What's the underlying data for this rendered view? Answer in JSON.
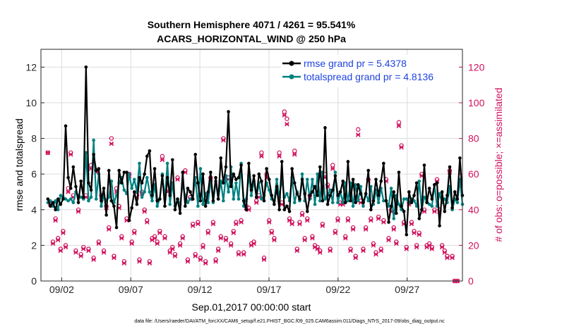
{
  "chart_data": {
    "type": "line",
    "title_line1": "Southern Hemisphere 4071 / 4261 = 95.541%",
    "title_line2": "ACARS_HORIZONTAL_WIND @ 250 hPa",
    "xlabel": "Sep.01,2017 00:00:00 start",
    "ylabel_left": "rmse and totalspread",
    "ylabel_right": "# of obs: o=possible; ×=assimilated",
    "footer": "data file: /Users/raeder/DAI/ATM_forcXX/CAM6_setup/f.e21.FHIST_BGC.f09_025.CAM6assim.011/Diags_NTrS_2017-09/obs_diag_output.nc",
    "xlim": [
      0.5,
      31
    ],
    "ylim_left": [
      0,
      13
    ],
    "ylim_right": [
      0,
      130
    ],
    "xticks": [
      2,
      7,
      12,
      17,
      22,
      27
    ],
    "xtick_labels": [
      "09/02",
      "09/07",
      "09/12",
      "09/17",
      "09/22",
      "09/27"
    ],
    "yticks_left": [
      0,
      2,
      4,
      6,
      8,
      10,
      12
    ],
    "yticks_right": [
      0,
      20,
      40,
      60,
      80,
      100,
      120
    ],
    "grid": true,
    "legend_position": "top-right",
    "colors": {
      "rmse": "#000000",
      "spread": "#008080",
      "obs": "#d0105c",
      "legend_text": "#1f43e0"
    },
    "series": [
      {
        "name": "rmse grand pr = 5.4378",
        "axis": "left",
        "values": [
          4.6,
          4.2,
          4.4,
          4.0,
          4.6,
          4.3,
          4.6,
          8.7,
          5.8,
          5.2,
          6.4,
          5.3,
          4.4,
          5.6,
          4.7,
          12.0,
          5.5,
          5.1,
          7.1,
          6.2,
          6.3,
          4.5,
          5.2,
          3.7,
          6.2,
          4.5,
          4.2,
          3.0,
          6.2,
          5.5,
          6.1,
          6.1,
          3.4,
          4.1,
          5.0,
          4.3,
          5.8,
          5.5,
          6.0,
          7.0,
          7.3,
          4.8,
          6.3,
          4.5,
          4.6,
          5.9,
          4.2,
          5.8,
          4.8,
          6.8,
          4.0,
          4.6,
          3.8,
          6.1,
          4.2,
          5.2,
          5.0,
          4.6,
          7.1,
          5.5,
          4.5,
          6.0,
          4.2,
          5.0,
          6.1,
          4.5,
          5.8,
          4.6,
          6.9,
          5.5,
          6.4,
          9.5,
          5.3,
          6.0,
          5.7,
          5.8,
          6.5,
          4.5,
          4.0,
          6.6,
          5.1,
          5.9,
          4.7,
          6.0,
          5.6,
          4.5,
          6.3,
          5.7,
          4.8,
          4.3,
          5.3,
          4.0,
          6.7,
          4.0,
          4.2,
          3.9,
          6.3,
          5.5,
          4.9,
          4.6,
          5.7,
          4.9,
          3.9,
          4.8,
          5.0,
          5.3,
          4.8,
          6.4,
          4.5,
          8.6,
          4.3,
          4.8,
          5.1,
          5.9,
          4.8,
          5.0,
          5.6,
          4.4,
          6.7,
          4.5,
          5.7,
          4.4,
          5.4,
          4.9,
          4.4,
          4.9,
          6.2,
          4.0,
          4.5,
          5.7,
          4.8,
          5.6,
          6.6,
          4.5,
          3.3,
          4.2,
          5.0,
          3.8,
          6.1,
          4.2,
          3.9,
          2.6,
          5.0,
          4.4,
          4.8,
          5.5,
          3.5,
          4.0,
          6.5,
          4.4,
          5.2,
          4.6,
          5.4,
          5.5,
          3.1,
          5.0,
          3.9,
          4.8,
          6.4,
          4.1,
          5.0,
          4.6,
          6.9,
          4.8
        ]
      },
      {
        "name": "totalspread grand pr = 4.8136",
        "axis": "left",
        "values": [
          4.4,
          4.5,
          4.2,
          4.5,
          4.0,
          4.8,
          4.7,
          4.6,
          4.5,
          4.6,
          4.4,
          5.0,
          4.8,
          4.7,
          4.6,
          7.2,
          4.5,
          4.7,
          7.9,
          4.6,
          6.0,
          4.2,
          4.8,
          4.5,
          4.7,
          5.6,
          4.4,
          4.8,
          5.5,
          5.8,
          5.1,
          4.9,
          6.0,
          5.2,
          5.7,
          5.0,
          6.6,
          4.7,
          5.0,
          5.8,
          5.0,
          4.5,
          5.4,
          4.2,
          4.6,
          6.0,
          4.6,
          6.6,
          4.3,
          5.5,
          4.2,
          4.6,
          4.3,
          5.4,
          4.8,
          4.4,
          4.6,
          4.6,
          5.8,
          4.2,
          6.3,
          4.3,
          4.9,
          4.4,
          5.7,
          4.4,
          5.6,
          4.6,
          5.6,
          4.5,
          5.9,
          5.0,
          6.4,
          4.6,
          5.5,
          4.6,
          6.6,
          4.2,
          4.6,
          5.9,
          4.8,
          5.6,
          4.7,
          5.5,
          4.6,
          4.8,
          5.5,
          5.1,
          4.6,
          4.5,
          5.7,
          4.7,
          5.7,
          4.7,
          4.9,
          4.5,
          5.8,
          4.4,
          5.0,
          4.5,
          6.0,
          4.5,
          5.7,
          4.6,
          5.7,
          4.3,
          6.0,
          4.5,
          6.1,
          4.6,
          4.8,
          5.1,
          4.4,
          6.1,
          4.4,
          5.0,
          4.4,
          5.5,
          4.5,
          5.5,
          4.2,
          5.4,
          4.5,
          5.3,
          4.2,
          4.9,
          4.5,
          5.3,
          4.3,
          5.1,
          4.4,
          5.2,
          4.5,
          4.5,
          4.2,
          5.2,
          3.5,
          4.8,
          4.3,
          4.0,
          4.6,
          4.6,
          4.4,
          4.6,
          4.5,
          4.2,
          5.6,
          4.0,
          4.7,
          4.5,
          4.3,
          4.2,
          5.4,
          4.2,
          4.9,
          4.4,
          4.6,
          4.4,
          5.3,
          4.0,
          4.6,
          4.4,
          5.7,
          4.3
        ]
      },
      {
        "name": "possible obs",
        "axis": "right",
        "marker": "o",
        "values": [
          72,
          43,
          22,
          35,
          24,
          18,
          28,
          20,
          52,
          72,
          48,
          17,
          40,
          15,
          19,
          48,
          18,
          65,
          13,
          62,
          22,
          48,
          17,
          42,
          30,
          80,
          14,
          52,
          42,
          25,
          11,
          35,
          60,
          22,
          28,
          48,
          12,
          50,
          40,
          34,
          11,
          24,
          25,
          22,
          28,
          70,
          25,
          52,
          17,
          19,
          15,
          58,
          21,
          25,
          62,
          12,
          47,
          32,
          15,
          33,
          13,
          20,
          11,
          28,
          58,
          33,
          12,
          18,
          25,
          80,
          24,
          58,
          21,
          28,
          33,
          16,
          34,
          16,
          42,
          41,
          21,
          22,
          45,
          48,
          72,
          13,
          60,
          34,
          28,
          24,
          50,
          72,
          44,
          95,
          91,
          35,
          33,
          73,
          18,
          33,
          38,
          24,
          35,
          48,
          25,
          20,
          19,
          17,
          32,
          60,
          54,
          18,
          65,
          28,
          35,
          44,
          44,
          25,
          35,
          18,
          30,
          14,
          85,
          45,
          18,
          30,
          57,
          35,
          21,
          16,
          36,
          18,
          34,
          57,
          24,
          40,
          30,
          22,
          89,
          76,
          33,
          19,
          44,
          33,
          28,
          20,
          27,
          60,
          40,
          20,
          21,
          19,
          40,
          57,
          40,
          20,
          17,
          14,
          62,
          14,
          0,
          0
        ]
      },
      {
        "name": "assimilated obs",
        "axis": "right",
        "marker": "x",
        "values": [
          72,
          43,
          21,
          34,
          23,
          17,
          27,
          19,
          50,
          71,
          47,
          16,
          39,
          14,
          18,
          47,
          17,
          63,
          12,
          61,
          21,
          47,
          16,
          41,
          29,
          77,
          13,
          50,
          41,
          24,
          10,
          34,
          59,
          21,
          27,
          47,
          11,
          49,
          39,
          33,
          10,
          23,
          24,
          21,
          27,
          68,
          24,
          50,
          16,
          18,
          14,
          57,
          20,
          24,
          61,
          11,
          46,
          31,
          14,
          32,
          12,
          19,
          10,
          27,
          57,
          32,
          11,
          17,
          24,
          79,
          23,
          57,
          20,
          27,
          32,
          15,
          33,
          15,
          41,
          40,
          20,
          21,
          44,
          47,
          70,
          12,
          58,
          33,
          27,
          23,
          49,
          70,
          43,
          93,
          88,
          34,
          32,
          71,
          17,
          32,
          37,
          23,
          34,
          47,
          24,
          19,
          18,
          16,
          31,
          58,
          53,
          17,
          63,
          27,
          34,
          43,
          43,
          24,
          34,
          17,
          29,
          13,
          82,
          44,
          17,
          29,
          56,
          34,
          20,
          15,
          35,
          17,
          33,
          56,
          23,
          39,
          29,
          21,
          87,
          75,
          32,
          18,
          43,
          32,
          27,
          19,
          26,
          59,
          39,
          19,
          20,
          18,
          39,
          56,
          39,
          19,
          16,
          13,
          61,
          13,
          0,
          0
        ]
      }
    ]
  }
}
